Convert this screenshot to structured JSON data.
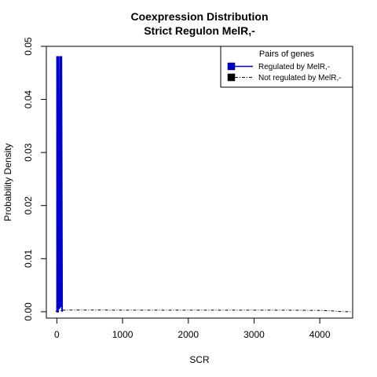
{
  "chart_data": {
    "type": "line",
    "title": "Coexpression Distribution",
    "subtitle": "Strict Regulon MelR,-",
    "xlabel": "SCR",
    "ylabel": "Probability Density",
    "xlim": [
      -160,
      4500
    ],
    "ylim": [
      -0.0012,
      0.05
    ],
    "x_ticks": [
      0,
      1000,
      2000,
      3000,
      4000
    ],
    "y_ticks": [
      0.0,
      0.01,
      0.02,
      0.03,
      0.04,
      0.05
    ],
    "x_tick_labels": [
      "0",
      "1000",
      "2000",
      "3000",
      "4000"
    ],
    "y_tick_labels": [
      "0.00",
      "0.01",
      "0.02",
      "0.03",
      "0.04",
      "0.05"
    ],
    "legend": {
      "title": "Pairs of genes",
      "placement": "top-right",
      "entries": [
        "Regulated by  MelR,-",
        "Not regulated by  MelR,-"
      ]
    },
    "series": [
      {
        "name": "Regulated by  MelR,-",
        "color": "#0000cc",
        "style": "solid",
        "x": [
          0,
          2,
          3,
          5,
          7,
          10,
          14,
          18,
          20,
          22,
          30,
          35,
          40,
          45,
          48,
          50,
          55,
          60,
          65,
          70,
          80
        ],
        "y": [
          0.0,
          0.0,
          0.048,
          0.048,
          0.0,
          0.0,
          0.0,
          0.0,
          0.048,
          0.048,
          0.001,
          0.0008,
          0.0007,
          0.0008,
          0.048,
          0.048,
          0.001,
          0.001,
          0.048,
          0.048,
          0.0
        ]
      },
      {
        "name": "Not regulated by  MelR,-",
        "color": "#000000",
        "style": "dashed",
        "x": [
          -20,
          0,
          50,
          100,
          200,
          500,
          1000,
          1500,
          2000,
          2500,
          3000,
          3500,
          4000,
          4200,
          4300,
          4400,
          4500
        ],
        "y": [
          0.0,
          0.0001,
          0.0002,
          0.0003,
          0.00032,
          0.00032,
          0.0003,
          0.0003,
          0.0003,
          0.0003,
          0.0003,
          0.0003,
          0.00025,
          0.00015,
          5e-05,
          0.0,
          0.0
        ]
      }
    ]
  }
}
